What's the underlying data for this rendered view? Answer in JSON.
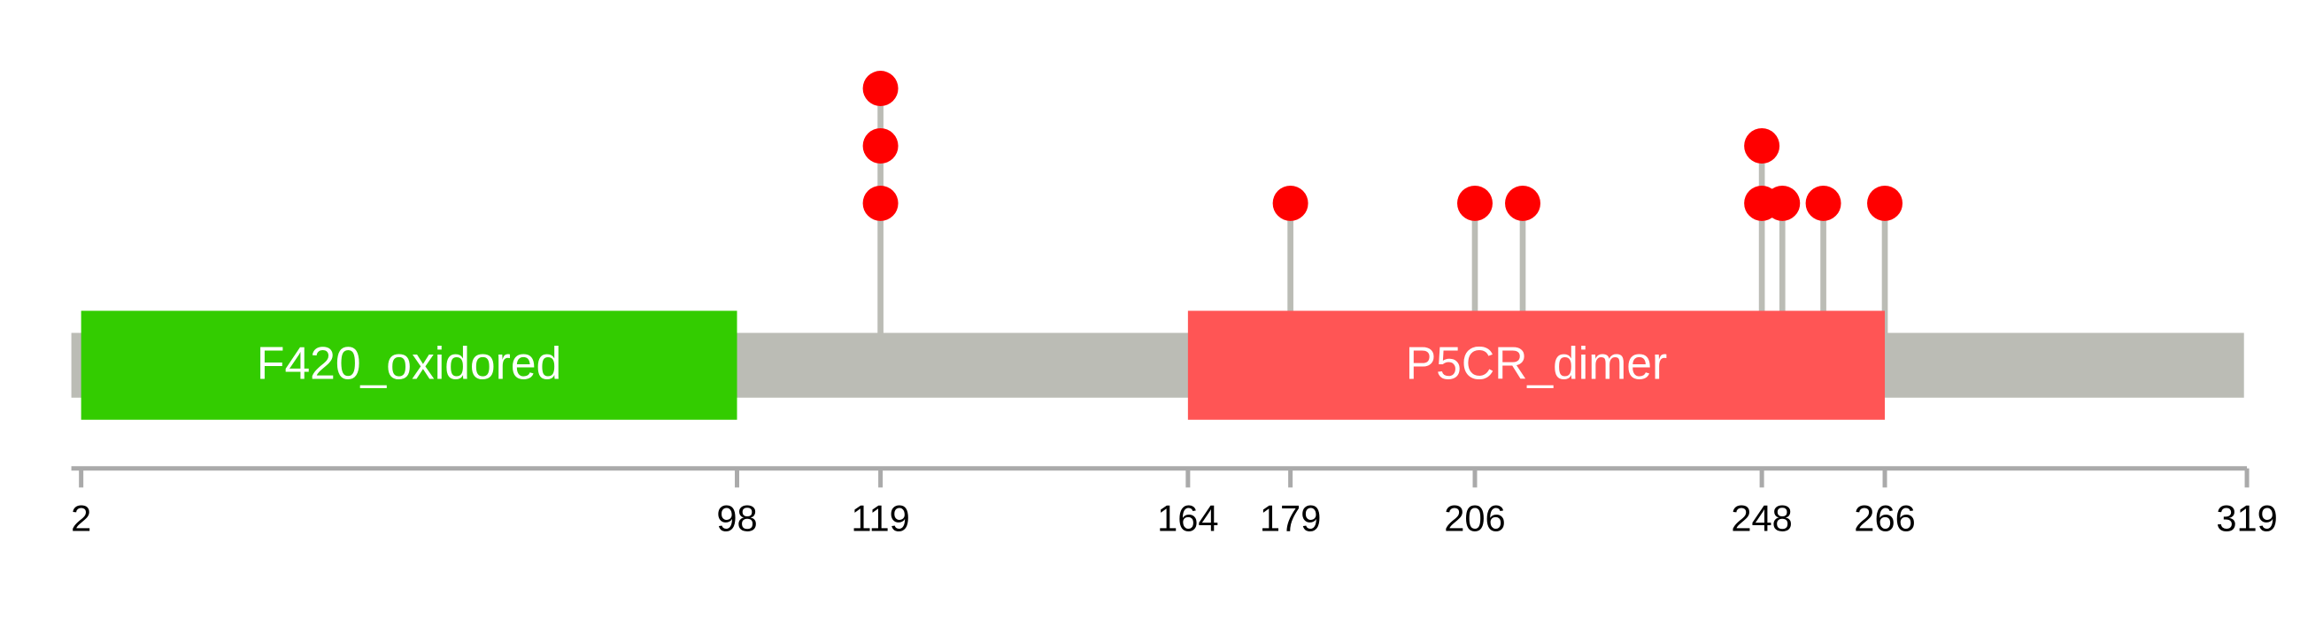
{
  "chart_data": {
    "type": "lollipop",
    "xlim": [
      1,
      319
    ],
    "xticks": [
      2,
      98,
      119,
      164,
      179,
      206,
      248,
      266,
      319
    ],
    "backbone_color": "#bbbcb5",
    "domains": [
      {
        "name": "F420_oxidored",
        "start": 2,
        "end": 98,
        "color": "#33cc00"
      },
      {
        "name": "P5CR_dimer",
        "start": 164,
        "end": 266,
        "color": "#ff5555"
      }
    ],
    "mutations": {
      "color": "#ff0000",
      "positions": [
        119,
        179,
        206,
        213,
        248,
        251,
        257,
        266
      ],
      "counts": [
        3,
        1,
        1,
        1,
        2,
        1,
        1,
        1
      ]
    }
  }
}
